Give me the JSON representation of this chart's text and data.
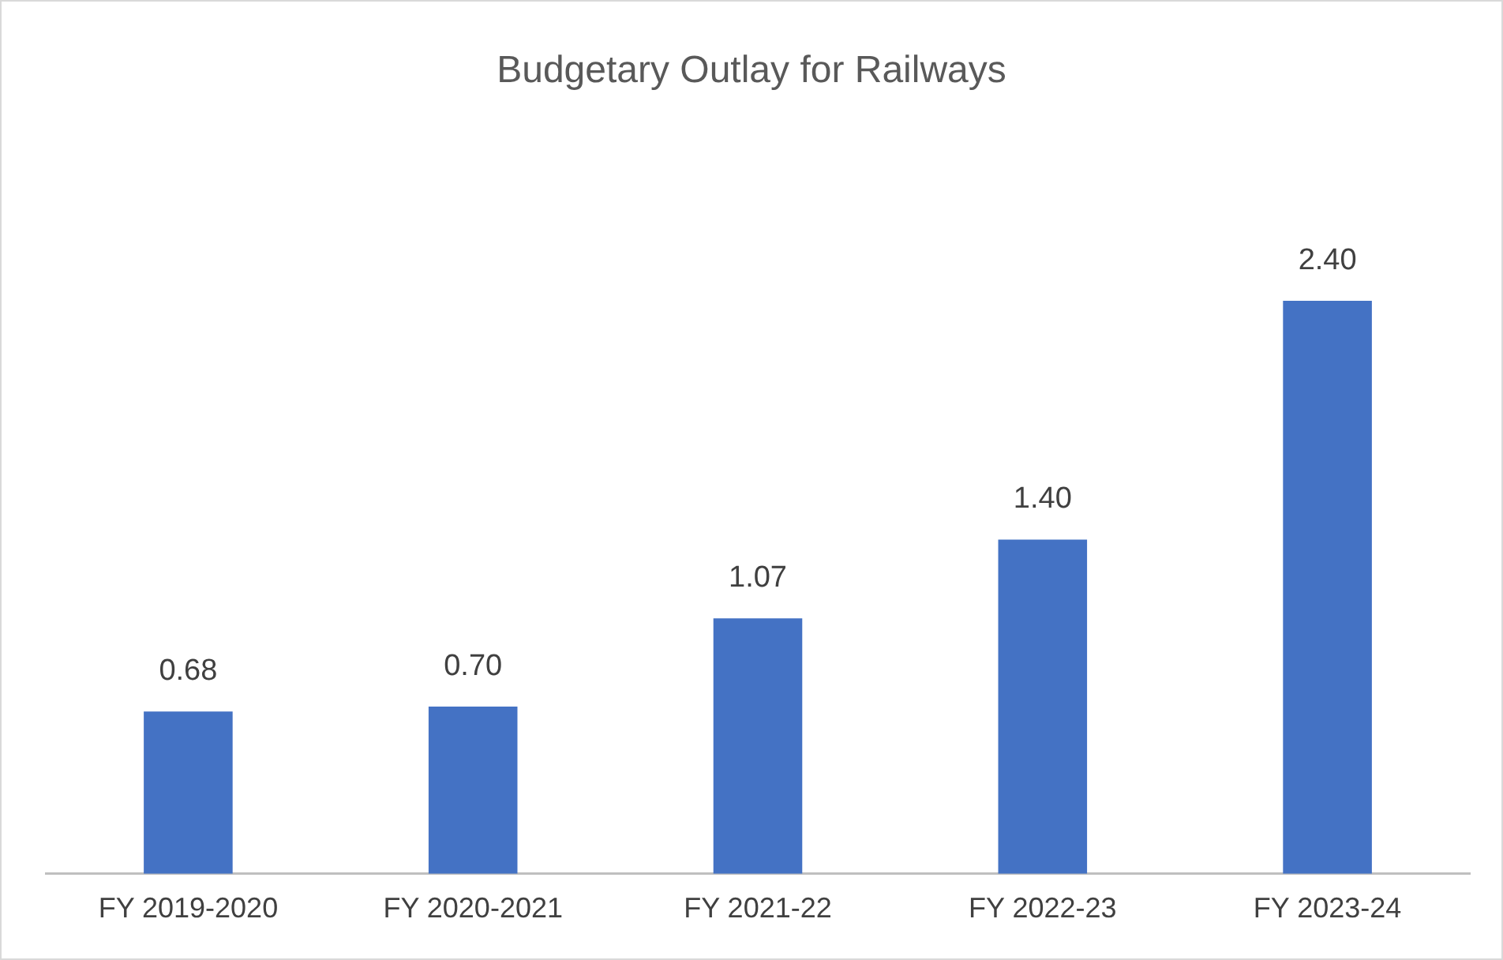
{
  "chart_data": {
    "type": "bar",
    "title": "Budgetary Outlay for Railways",
    "categories": [
      "FY 2019-2020",
      "FY 2020-2021",
      "FY 2021-22",
      "FY 2022-23",
      "FY 2023-24"
    ],
    "values": [
      0.68,
      0.7,
      1.07,
      1.4,
      2.4
    ],
    "value_labels": [
      "0.68",
      "0.70",
      "1.07",
      "1.40",
      "2.40"
    ],
    "color": "#4472c4",
    "relative": false,
    "grid": false,
    "legend": false
  }
}
